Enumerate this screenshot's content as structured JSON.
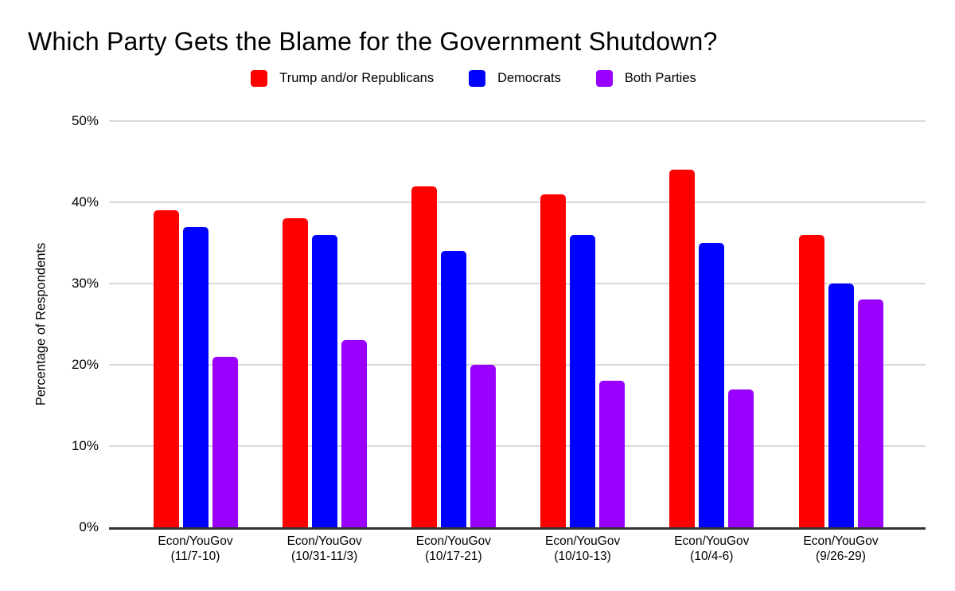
{
  "chart_data": {
    "type": "bar",
    "title": "Which Party Gets the Blame for the Government Shutdown?",
    "xlabel": "",
    "ylabel": "Percentage of Respondents",
    "ylim": [
      0,
      50
    ],
    "yticks": [
      {
        "value": 0,
        "label": "0%"
      },
      {
        "value": 10,
        "label": "10%"
      },
      {
        "value": 20,
        "label": "20%"
      },
      {
        "value": 30,
        "label": "30%"
      },
      {
        "value": 40,
        "label": "40%"
      },
      {
        "value": 50,
        "label": "50%"
      }
    ],
    "grid": true,
    "legend_position": "top-center",
    "categories": [
      [
        "Econ/YouGov",
        "(11/7-10)"
      ],
      [
        "Econ/YouGov",
        "(10/31-11/3)"
      ],
      [
        "Econ/YouGov",
        "(10/17-21)"
      ],
      [
        "Econ/YouGov",
        "(10/10-13)"
      ],
      [
        "Econ/YouGov",
        "(10/4-6)"
      ],
      [
        "Econ/YouGov",
        "(9/26-29)"
      ]
    ],
    "series": [
      {
        "name": "Trump and/or Republicans",
        "color": "#ff0000",
        "values": [
          39,
          38,
          42,
          41,
          44,
          36
        ]
      },
      {
        "name": "Democrats",
        "color": "#0000ff",
        "values": [
          37,
          36,
          34,
          36,
          35,
          30
        ]
      },
      {
        "name": "Both Parties",
        "color": "#9900ff",
        "values": [
          21,
          23,
          20,
          18,
          17,
          28
        ]
      }
    ],
    "colors": {
      "gridline": "#d9d9d9",
      "axis_line": "#333333",
      "text": "#000000",
      "background": "#ffffff"
    }
  }
}
